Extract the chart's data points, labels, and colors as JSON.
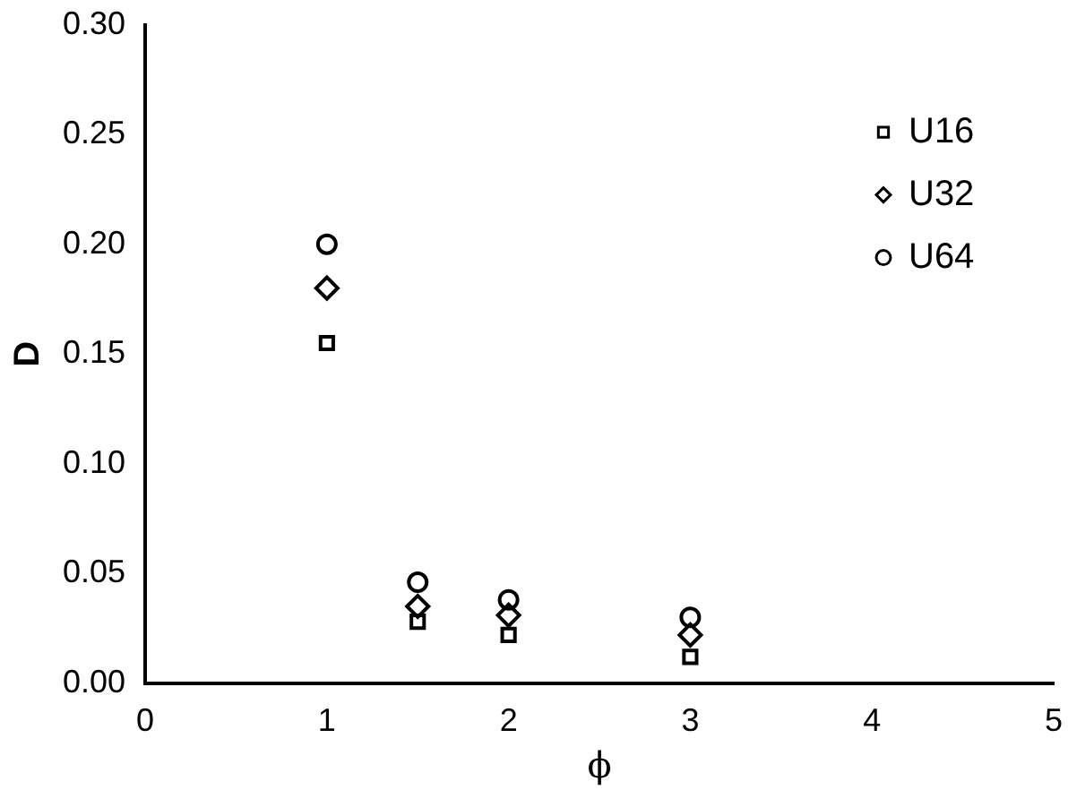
{
  "chart_data": {
    "type": "scatter",
    "xlabel": "ϕ",
    "ylabel": "D",
    "x": [
      1,
      1.5,
      2,
      3
    ],
    "series": [
      {
        "name": "U16",
        "color": "#000000",
        "marker": "square",
        "values": [
          0.155,
          0.028,
          0.022,
          0.012
        ]
      },
      {
        "name": "U32",
        "color": "#000000",
        "marker": "diamond",
        "values": [
          0.18,
          0.035,
          0.031,
          0.022
        ]
      },
      {
        "name": "U64",
        "color": "#000000",
        "marker": "circle",
        "values": [
          0.2,
          0.046,
          0.038,
          0.03
        ]
      }
    ],
    "xlim": [
      0,
      5
    ],
    "xticks": [
      0,
      1,
      2,
      3,
      4,
      5
    ],
    "ylim": [
      0,
      0.3
    ],
    "yticks": [
      {
        "value": 0,
        "label": "0.00"
      },
      {
        "value": 0.05,
        "label": "0.05"
      },
      {
        "value": 0.1,
        "label": "0.10"
      },
      {
        "value": 0.15,
        "label": "0.15"
      },
      {
        "value": 0.2,
        "label": "0.20"
      },
      {
        "value": 0.25,
        "label": "0.25"
      },
      {
        "value": 0.3,
        "label": "0.30"
      }
    ],
    "grid": false,
    "legend": "top right"
  }
}
